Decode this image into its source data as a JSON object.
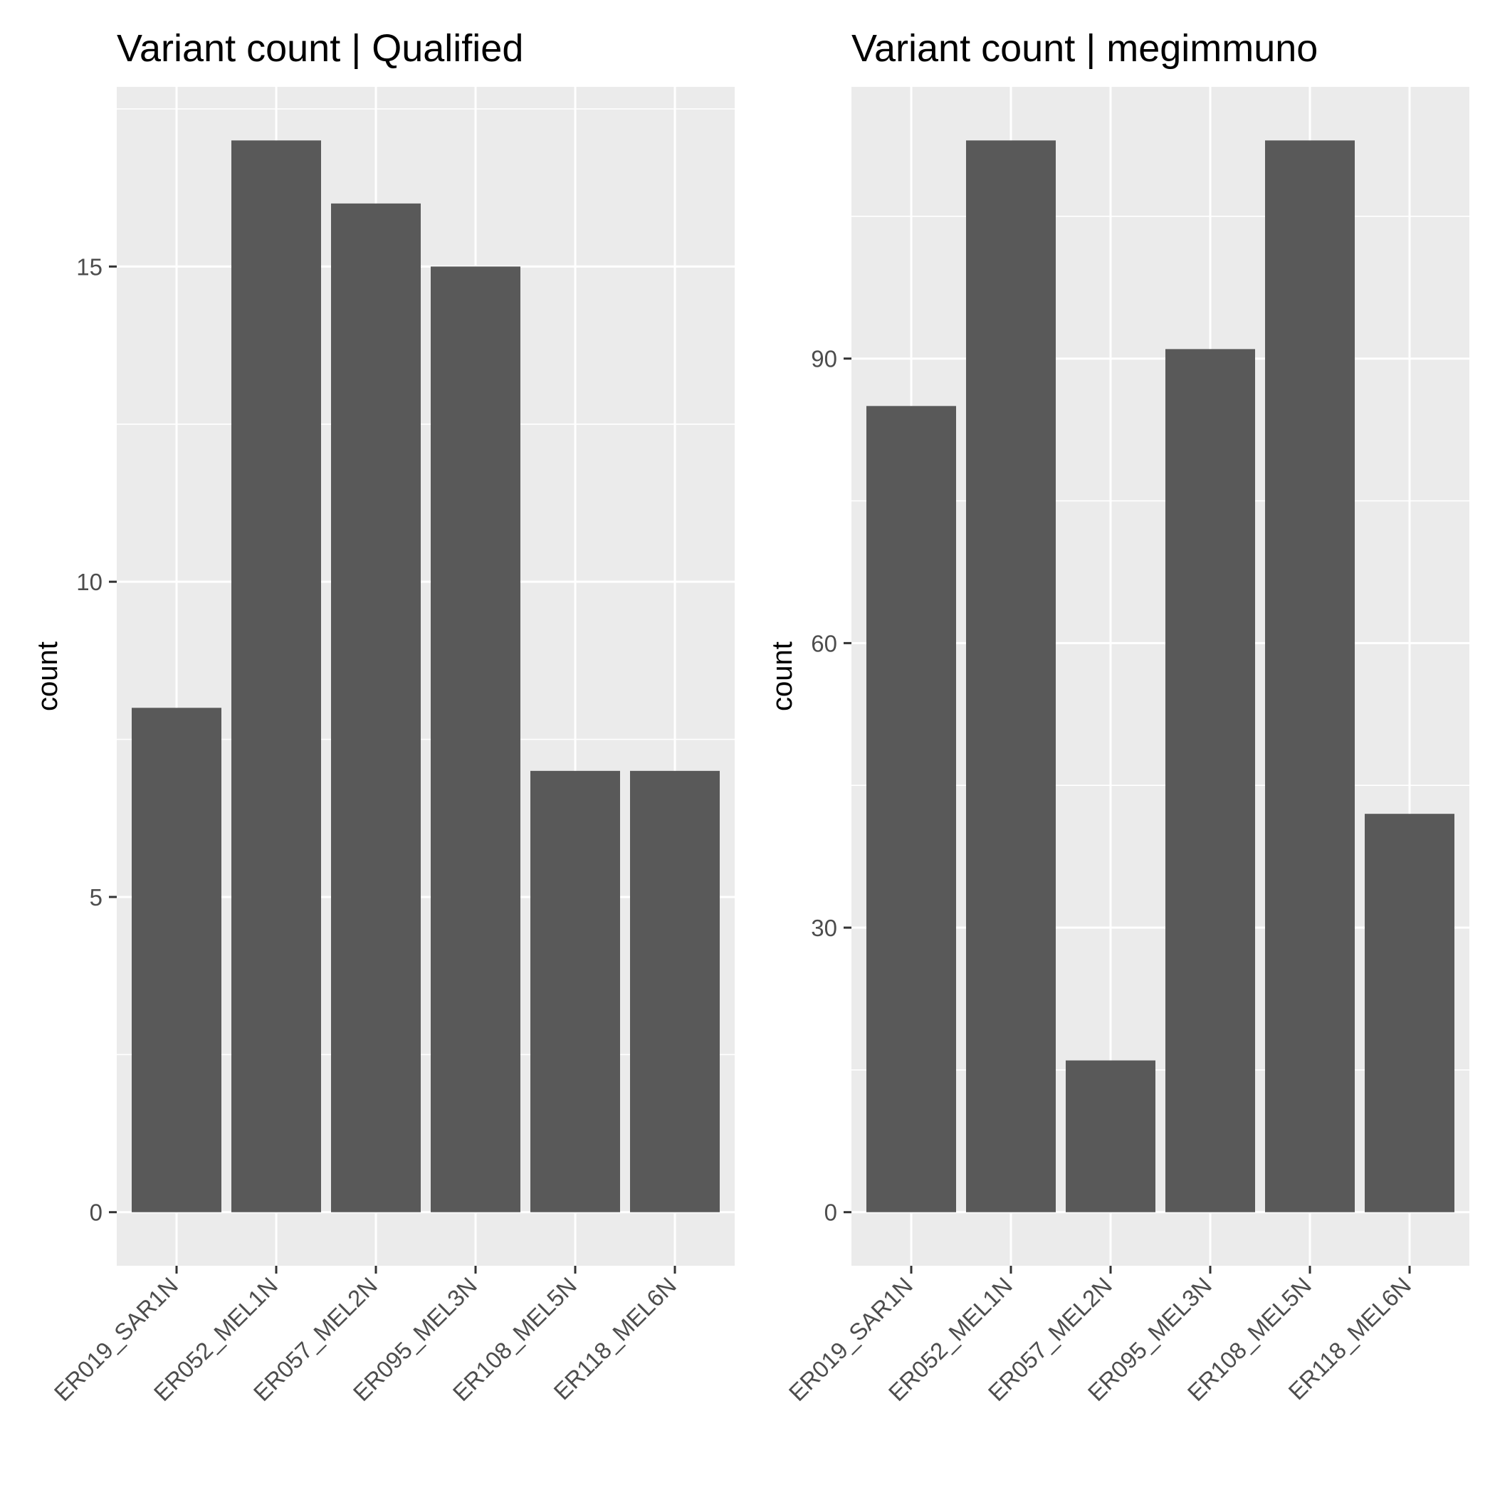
{
  "chart_data": [
    {
      "type": "bar",
      "title": "Variant count | Qualified",
      "xlabel": "",
      "ylabel": "count",
      "categories": [
        "ER019_SAR1N",
        "ER052_MEL1N",
        "ER057_MEL2N",
        "ER095_MEL3N",
        "ER108_MEL5N",
        "ER118_MEL6N"
      ],
      "values": [
        8,
        17,
        16,
        15,
        7,
        7
      ],
      "ylim": [
        -0.85,
        17.85
      ],
      "yticks": [
        0,
        5,
        10,
        15
      ],
      "ytick_labels": [
        "0",
        "5",
        "10",
        "15"
      ],
      "bar_color": "#595959",
      "panel_color": "#ebebeb",
      "grid": true,
      "legend": "none"
    },
    {
      "type": "bar",
      "title": "Variant count | megimmuno",
      "xlabel": "",
      "ylabel": "count",
      "categories": [
        "ER019_SAR1N",
        "ER052_MEL1N",
        "ER057_MEL2N",
        "ER095_MEL3N",
        "ER108_MEL5N",
        "ER118_MEL6N"
      ],
      "values": [
        85,
        113,
        16,
        91,
        113,
        42
      ],
      "ylim": [
        -5.65,
        118.65
      ],
      "yticks": [
        0,
        30,
        60,
        90
      ],
      "ytick_labels": [
        "0",
        "30",
        "60",
        "90"
      ],
      "bar_color": "#595959",
      "panel_color": "#ebebeb",
      "grid": true,
      "legend": "none"
    }
  ]
}
